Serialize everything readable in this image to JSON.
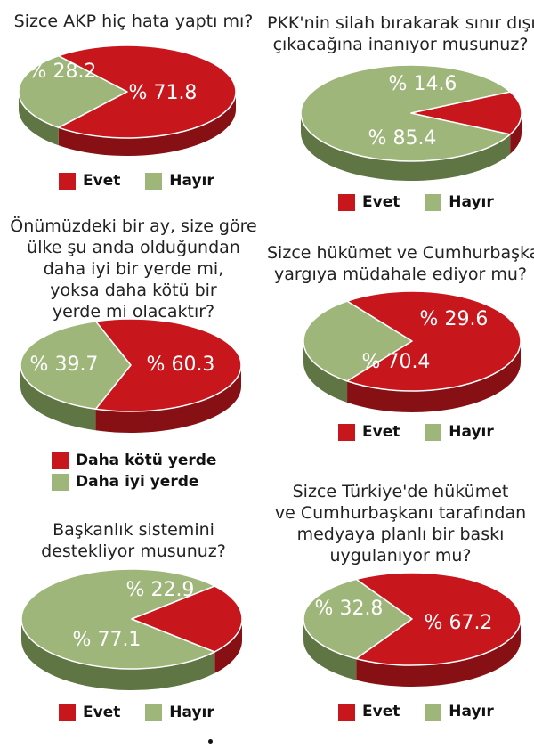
{
  "colors": {
    "red": "#c8161d",
    "red_dark": "#861014",
    "green": "#9fb67b",
    "green_dark": "#5f7544"
  },
  "chart_data": [
    {
      "type": "pie",
      "title": "Sizce AKP hiç hata yaptı mı?",
      "slices": [
        {
          "label": "Evet",
          "value": 71.8,
          "color": "red"
        },
        {
          "label": "Hayır",
          "value": 28.2,
          "color": "green"
        }
      ],
      "value_labels": [
        "% 71.8",
        "% 28.2"
      ],
      "legend_layout": "inline"
    },
    {
      "type": "pie",
      "title": "PKK'nin silah bırakarak sınır dışına çıkacağına inanıyor musunuz?",
      "slices": [
        {
          "label": "Evet",
          "value": 14.6,
          "color": "red"
        },
        {
          "label": "Hayır",
          "value": 85.4,
          "color": "green"
        }
      ],
      "value_labels": [
        "% 14.6",
        "% 85.4"
      ],
      "legend_layout": "inline"
    },
    {
      "type": "pie",
      "title": "Önümüzdeki bir ay, size göre ülke şu anda olduğundan daha iyi bir yerde mi, yoksa daha kötü bir yerde mi olacaktır?",
      "slices": [
        {
          "label": "Daha kötü yerde",
          "value": 60.3,
          "color": "red"
        },
        {
          "label": "Daha iyi yerde",
          "value": 39.7,
          "color": "green"
        }
      ],
      "value_labels": [
        "% 60.3",
        "% 39.7"
      ],
      "legend_layout": "stacked"
    },
    {
      "type": "pie",
      "title": "Sizce hükümet ve Cumhurbaşkanı yargıya müdahale ediyor mu?",
      "slices": [
        {
          "label": "Evet",
          "value": 70.4,
          "color": "red"
        },
        {
          "label": "Hayır",
          "value": 29.6,
          "color": "green"
        }
      ],
      "value_labels": [
        "% 70.4",
        "% 29.6"
      ],
      "legend_layout": "inline"
    },
    {
      "type": "pie",
      "title": "Başkanlık sistemini destekliyor musunuz?",
      "slices": [
        {
          "label": "Evet",
          "value": 22.9,
          "color": "red"
        },
        {
          "label": "Hayır",
          "value": 77.1,
          "color": "green"
        }
      ],
      "value_labels": [
        "% 22.9",
        "% 77.1"
      ],
      "legend_layout": "inline"
    },
    {
      "type": "pie",
      "title": "Sizce Türkiye'de hükümet ve Cumhurbaşkanı tarafından medyaya planlı bir baskı uygulanıyor mu?",
      "slices": [
        {
          "label": "Evet",
          "value": 67.2,
          "color": "red"
        },
        {
          "label": "Hayır",
          "value": 32.8,
          "color": "green"
        }
      ],
      "value_labels": [
        "% 67.2",
        "% 32.8"
      ],
      "legend_layout": "inline"
    }
  ],
  "text": {
    "q0": [
      "Sizce AKP hiç hata yaptı mı?"
    ],
    "q1": [
      "PKK'nin silah bırakarak sınır dışına",
      "çıkacağına inanıyor musunuz?"
    ],
    "q2": [
      "Önümüzdeki bir ay, size göre",
      "ülke şu anda olduğundan",
      "daha iyi bir yerde mi,",
      "yoksa daha kötü bir",
      "yerde mi olacaktır?"
    ],
    "q3": [
      "Sizce hükümet ve Cumhurbaşkanı",
      "yargıya müdahale ediyor mu?"
    ],
    "q4": [
      "Başkanlık sistemini",
      "destekliyor musunuz?"
    ],
    "q5": [
      "Sizce Türkiye'de hükümet",
      "ve Cumhurbaşkanı tarafından",
      "medyaya planlı bir baskı",
      "uygulanıyor mu?"
    ]
  }
}
